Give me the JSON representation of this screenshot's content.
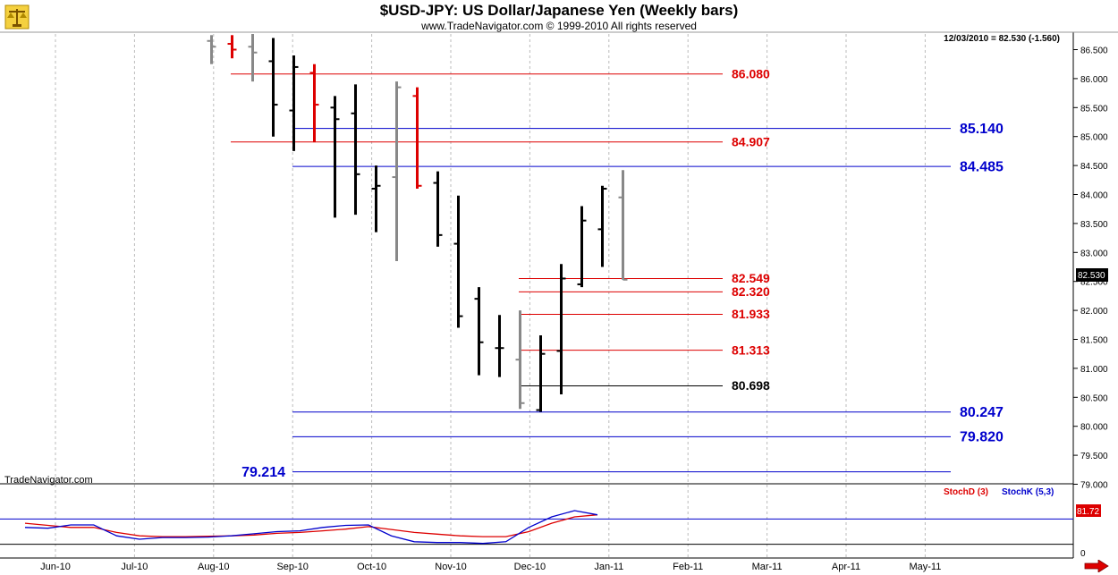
{
  "header": {
    "title": "$USD-JPY:  US Dollar/Japanese Yen  (Weekly bars)",
    "subtitle": "www.TradeNavigator.com © 1999-2010 All rights reserved",
    "last_quote": "12/03/2010 = 82.530 (-1.560)",
    "price_tag": "82.530",
    "watermark": "TradeNavigator.com"
  },
  "colors": {
    "up": "#000000",
    "down": "#dd0000",
    "gray": "#888888",
    "blue_level": "#0000cc",
    "red_level": "#dd0000",
    "black_level": "#000000",
    "stoch_d": "#dd0000",
    "stoch_k": "#0000cc",
    "grid": "#bbbbbb"
  },
  "icons": {
    "logo": "scales-logo-icon",
    "nav": "right-arrow-icon"
  },
  "chart_data": [
    {
      "type": "bar",
      "subtype": "ohlc",
      "title": "$USD-JPY:  US Dollar/Japanese Yen  (Weekly bars)",
      "ylim": [
        79.0,
        86.6
      ],
      "grid": true,
      "x_ticks": [
        "Jun-10",
        "Jul-10",
        "Aug-10",
        "Sep-10",
        "Oct-10",
        "Nov-10",
        "Dec-10",
        "Jan-11",
        "Feb-11",
        "Mar-11",
        "Apr-11",
        "May-11"
      ],
      "y_ticks": [
        "86.500",
        "86.000",
        "85.500",
        "85.000",
        "84.500",
        "84.000",
        "83.500",
        "83.000",
        "82.500",
        "82.000",
        "81.500",
        "81.000",
        "80.500",
        "80.000",
        "79.500",
        "79.000"
      ],
      "bars": [
        {
          "date": "2010-07-26",
          "open": 86.65,
          "high": 86.75,
          "low": 86.25,
          "close": 86.55,
          "color": "gray"
        },
        {
          "date": "2010-08-02",
          "open": 86.6,
          "high": 86.75,
          "low": 86.35,
          "close": 86.5,
          "color": "down"
        },
        {
          "date": "2010-08-09",
          "open": 86.55,
          "high": 86.8,
          "low": 85.95,
          "close": 86.45,
          "color": "gray"
        },
        {
          "date": "2010-08-16",
          "open": 86.3,
          "high": 86.7,
          "low": 85.0,
          "close": 85.55,
          "color": "up"
        },
        {
          "date": "2010-08-23",
          "open": 85.45,
          "high": 86.4,
          "low": 84.75,
          "close": 86.2,
          "color": "up"
        },
        {
          "date": "2010-08-30",
          "open": 86.1,
          "high": 86.25,
          "low": 84.9,
          "close": 85.55,
          "color": "down"
        },
        {
          "date": "2010-09-06",
          "open": 85.5,
          "high": 85.7,
          "low": 83.6,
          "close": 85.3,
          "color": "up"
        },
        {
          "date": "2010-09-13",
          "open": 85.4,
          "high": 85.9,
          "low": 83.65,
          "close": 84.35,
          "color": "up"
        },
        {
          "date": "2010-09-20",
          "open": 84.1,
          "high": 84.5,
          "low": 83.35,
          "close": 84.15,
          "color": "up"
        },
        {
          "date": "2010-09-27",
          "open": 84.3,
          "high": 85.95,
          "low": 82.85,
          "close": 85.85,
          "color": "gray"
        },
        {
          "date": "2010-10-04",
          "open": 85.7,
          "high": 85.85,
          "low": 84.1,
          "close": 84.15,
          "color": "down"
        },
        {
          "date": "2010-10-11",
          "open": 84.2,
          "high": 84.4,
          "low": 83.1,
          "close": 83.3,
          "color": "up"
        },
        {
          "date": "2010-10-18",
          "open": 83.15,
          "high": 83.98,
          "low": 81.7,
          "close": 81.9,
          "color": "up"
        },
        {
          "date": "2010-10-25",
          "open": 82.2,
          "high": 82.4,
          "low": 80.88,
          "close": 81.45,
          "color": "up"
        },
        {
          "date": "2010-11-01",
          "open": 81.35,
          "high": 81.92,
          "low": 80.85,
          "close": 81.35,
          "color": "up"
        },
        {
          "date": "2010-11-08",
          "open": 81.15,
          "high": 82.0,
          "low": 80.3,
          "close": 80.4,
          "color": "gray"
        },
        {
          "date": "2010-11-15",
          "open": 80.28,
          "high": 81.57,
          "low": 80.25,
          "close": 81.25,
          "color": "up"
        },
        {
          "date": "2010-11-22",
          "open": 81.3,
          "high": 82.8,
          "low": 80.55,
          "close": 82.55,
          "color": "up"
        },
        {
          "date": "2010-11-29",
          "open": 82.45,
          "high": 83.8,
          "low": 82.4,
          "close": 83.55,
          "color": "up"
        },
        {
          "date": "2010-12-06",
          "open": 83.4,
          "high": 84.15,
          "low": 82.75,
          "close": 84.1,
          "color": "up"
        },
        {
          "date": "2010-12-13",
          "open": 83.95,
          "high": 84.42,
          "low": 82.53,
          "close": 82.53,
          "color": "gray"
        }
      ],
      "levels": [
        {
          "value": 86.08,
          "label": "86.080",
          "color": "red"
        },
        {
          "value": 85.14,
          "label": "85.140",
          "color": "blue"
        },
        {
          "value": 84.907,
          "label": "84.907",
          "color": "red"
        },
        {
          "value": 84.485,
          "label": "84.485",
          "color": "blue"
        },
        {
          "value": 82.549,
          "label": "82.549",
          "color": "red"
        },
        {
          "value": 82.32,
          "label": "82.320",
          "color": "red"
        },
        {
          "value": 81.933,
          "label": "81.933",
          "color": "red"
        },
        {
          "value": 81.313,
          "label": "81.313",
          "color": "red"
        },
        {
          "value": 80.698,
          "label": "80.698",
          "color": "black"
        },
        {
          "value": 80.247,
          "label": "80.247",
          "color": "blue"
        },
        {
          "value": 79.82,
          "label": "79.820",
          "color": "blue"
        },
        {
          "value": 79.214,
          "label": "79.214",
          "color": "blue"
        }
      ]
    },
    {
      "type": "line",
      "ylim": [
        0,
        100
      ],
      "y_ticks": [
        "0"
      ],
      "current_value": "81.72",
      "series": [
        {
          "name": "StochD (3)",
          "color": "red",
          "values": [
            70,
            65,
            60,
            60,
            48,
            40,
            38,
            38,
            39,
            40,
            42,
            46,
            48,
            52,
            56,
            62,
            55,
            48,
            44,
            40,
            38,
            38,
            50,
            70,
            85,
            90
          ]
        },
        {
          "name": "StochK (5,3)",
          "color": "blue",
          "values": [
            60,
            58,
            66,
            66,
            40,
            32,
            36,
            36,
            37,
            40,
            45,
            50,
            52,
            60,
            65,
            66,
            40,
            26,
            24,
            24,
            22,
            26,
            60,
            85,
            100,
            90
          ]
        }
      ]
    }
  ]
}
